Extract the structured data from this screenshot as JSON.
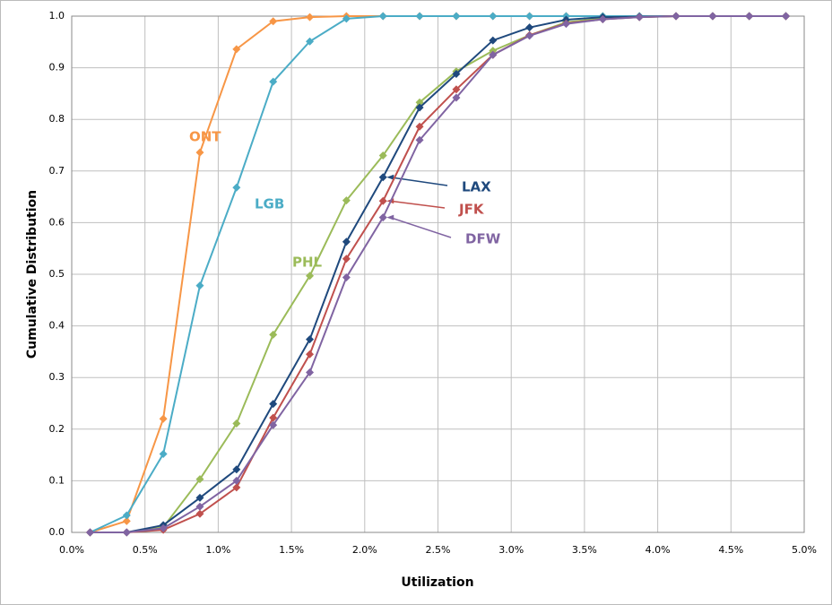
{
  "chart_data": {
    "type": "line",
    "x_label": "Utilization",
    "y_label": "Cumulative Distribution",
    "x": [
      0.125,
      0.375,
      0.625,
      0.875,
      1.125,
      1.375,
      1.625,
      1.875,
      2.125,
      2.375,
      2.625,
      2.875,
      3.125,
      3.375,
      3.625,
      3.875,
      4.125,
      4.375,
      4.625,
      4.875
    ],
    "series": [
      {
        "name": "ONT",
        "color": "#f79646",
        "values": [
          0,
          0.022,
          0.22,
          0.736,
          0.936,
          0.99,
          0.998,
          1,
          1,
          1,
          1,
          1,
          1,
          1,
          1,
          1,
          1,
          1,
          1,
          1
        ]
      },
      {
        "name": "LGB",
        "color": "#4bacc6",
        "values": [
          0,
          0.033,
          0.152,
          0.478,
          0.668,
          0.873,
          0.951,
          0.995,
          1,
          1,
          1,
          1,
          1,
          1,
          1,
          1,
          1,
          1,
          1,
          1
        ]
      },
      {
        "name": "PHL",
        "color": "#9bbb59",
        "values": [
          0,
          0,
          0.01,
          0.103,
          0.211,
          0.383,
          0.497,
          0.643,
          0.73,
          0.833,
          0.893,
          0.933,
          0.963,
          0.988,
          0.996,
          0.998,
          1,
          1,
          1,
          1
        ]
      },
      {
        "name": "LAX",
        "color": "#1f497d",
        "values": [
          0,
          0,
          0.014,
          0.067,
          0.122,
          0.249,
          0.374,
          0.563,
          0.688,
          0.823,
          0.888,
          0.953,
          0.978,
          0.993,
          0.998,
          0.999,
          1,
          1,
          1,
          1
        ]
      },
      {
        "name": "JFK",
        "color": "#c0504d",
        "values": [
          0,
          0,
          0.005,
          0.036,
          0.087,
          0.222,
          0.345,
          0.53,
          0.642,
          0.786,
          0.858,
          0.925,
          0.963,
          0.986,
          0.994,
          0.998,
          1,
          1,
          1,
          1
        ]
      },
      {
        "name": "DFW",
        "color": "#8064a2",
        "values": [
          0,
          0,
          0.008,
          0.05,
          0.1,
          0.208,
          0.31,
          0.494,
          0.61,
          0.76,
          0.842,
          0.925,
          0.962,
          0.985,
          0.994,
          0.998,
          1,
          1,
          1,
          1
        ]
      }
    ],
    "xlim": [
      0,
      5
    ],
    "xticks": [
      {
        "value": 0,
        "label": "0.0%"
      },
      {
        "value": 0.5,
        "label": "0.5%"
      },
      {
        "value": 1,
        "label": "1.0%"
      },
      {
        "value": 1.5,
        "label": "1.5%"
      },
      {
        "value": 2,
        "label": "2.0%"
      },
      {
        "value": 2.5,
        "label": "2.5%"
      },
      {
        "value": 3,
        "label": "3.0%"
      },
      {
        "value": 3.5,
        "label": "3.5%"
      },
      {
        "value": 4,
        "label": "4.0%"
      },
      {
        "value": 4.5,
        "label": "4.5%"
      },
      {
        "value": 5,
        "label": "5.0%"
      }
    ],
    "ylim": [
      0,
      1
    ],
    "yticks": [
      {
        "value": 0,
        "label": "0.0"
      },
      0.1,
      0.2,
      0.3,
      0.4,
      0.5,
      0.6,
      0.7,
      0.8,
      0.9,
      {
        "value": 1,
        "label": "1.0"
      }
    ],
    "grid": true
  }
}
